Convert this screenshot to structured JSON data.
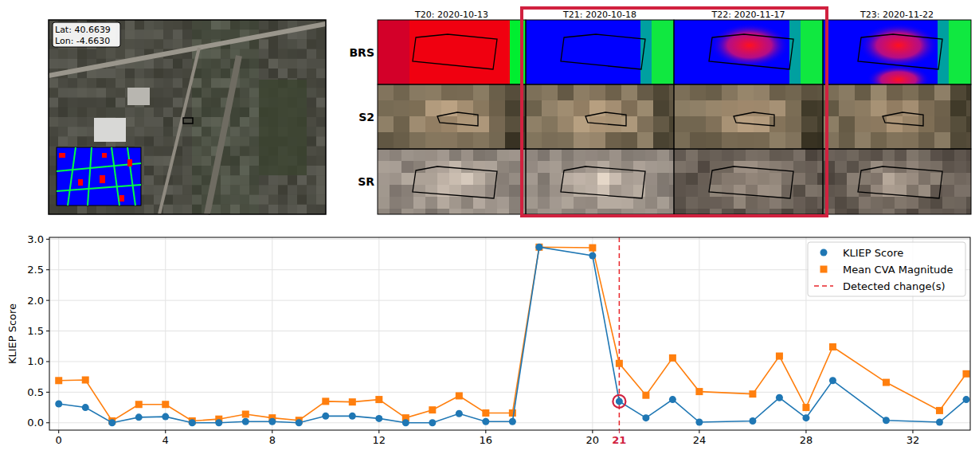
{
  "map_panel": {
    "coordinates": [
      "Lat: 40.6639",
      "Lon: -4.6630"
    ]
  },
  "image_grid": {
    "columns": [
      "T20: 2020-10-13",
      "T21: 2020-10-18",
      "T22: 2020-11-17",
      "T23: 2020-11-22"
    ],
    "rows": [
      "BRS",
      "S2",
      "SR"
    ],
    "highlighted_columns": [
      1,
      2
    ]
  },
  "chart_data": {
    "type": "line",
    "x": [
      0,
      1,
      2,
      3,
      4,
      5,
      6,
      7,
      8,
      9,
      10,
      11,
      12,
      13,
      14,
      15,
      16,
      17,
      18,
      20,
      21,
      22,
      23,
      24,
      26,
      27,
      28,
      29,
      31,
      33,
      34
    ],
    "series": [
      {
        "name": "KLIEP Score",
        "color": "#1f77b4",
        "marker": "circle",
        "line_style": "solid",
        "values": [
          0.31,
          0.25,
          0.0,
          0.09,
          0.1,
          0.0,
          0.0,
          0.02,
          0.02,
          0.0,
          0.11,
          0.11,
          0.07,
          0.0,
          0.0,
          0.15,
          0.02,
          0.02,
          2.87,
          2.73,
          0.35,
          0.08,
          0.38,
          0.01,
          0.03,
          0.41,
          0.08,
          0.69,
          0.04,
          0.01,
          0.38
        ]
      },
      {
        "name": "Mean CVA Magnitude",
        "color": "#ff7f0e",
        "marker": "square",
        "line_style": "solid",
        "values": [
          0.69,
          0.7,
          0.03,
          0.3,
          0.3,
          0.03,
          0.06,
          0.14,
          0.08,
          0.04,
          0.35,
          0.34,
          0.38,
          0.08,
          0.21,
          0.44,
          0.16,
          0.16,
          2.87,
          2.86,
          0.97,
          0.45,
          1.06,
          0.51,
          0.47,
          1.09,
          0.25,
          1.24,
          0.66,
          0.2,
          0.8
        ]
      }
    ],
    "y_label": "KLIEP Score",
    "detected_changes": [
      21
    ],
    "detected_label": "Detected change(s)",
    "xlim": [
      -0.35,
      34.15
    ],
    "ylim": [
      -0.12,
      3.03
    ],
    "xticks": [
      0,
      4,
      8,
      12,
      16,
      20,
      24,
      28,
      32
    ],
    "yticks": [
      {
        "value": 0,
        "label": "0.0"
      },
      {
        "value": 0.5,
        "label": "0.5"
      },
      {
        "value": 1,
        "label": "1.0"
      },
      {
        "value": 1.5,
        "label": "1.5"
      },
      {
        "value": 2,
        "label": "2.0"
      },
      {
        "value": 2.5,
        "label": "2.5"
      },
      {
        "value": 3,
        "label": "3.0"
      }
    ],
    "grid": true,
    "legend": "upper right"
  }
}
